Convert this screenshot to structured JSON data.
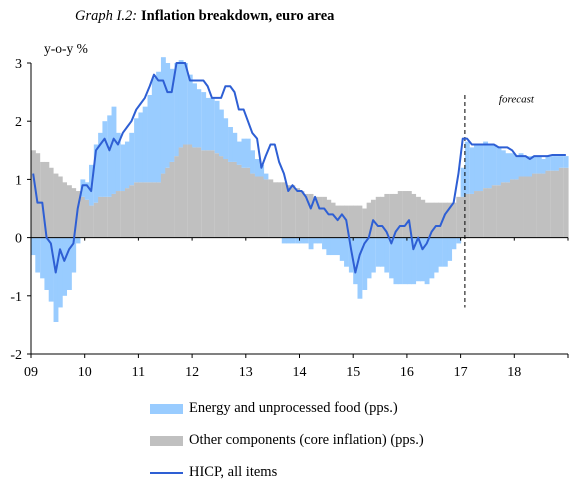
{
  "title": {
    "prefix": "Graph I.2:",
    "main": "Inflation  breakdown,  euro  area"
  },
  "colors": {
    "energy": "#99ccff",
    "core": "#c0c0c0",
    "hicp": "#2e5fd4",
    "axis": "#000000"
  },
  "chart_data": {
    "type": "area",
    "ylabel": "y-o-y %",
    "ylim": [
      -2,
      3
    ],
    "yticks": [
      3,
      2,
      1,
      0,
      -1,
      -2
    ],
    "x_tick_labels": [
      "09",
      "10",
      "11",
      "12",
      "13",
      "14",
      "15",
      "16",
      "17",
      "18"
    ],
    "xlim": [
      2009,
      2019
    ],
    "forecast_label": "forecast",
    "forecast_start": 2017.08,
    "series": [
      {
        "name": "Energy and unprocessed food (pps.)",
        "kind": "bar",
        "x": [
          2009.0,
          2009.08,
          2009.17,
          2009.25,
          2009.33,
          2009.42,
          2009.5,
          2009.58,
          2009.67,
          2009.75,
          2009.83,
          2009.92,
          2010.0,
          2010.08,
          2010.17,
          2010.25,
          2010.33,
          2010.42,
          2010.5,
          2010.58,
          2010.67,
          2010.75,
          2010.83,
          2010.92,
          2011.0,
          2011.08,
          2011.17,
          2011.25,
          2011.33,
          2011.42,
          2011.5,
          2011.58,
          2011.67,
          2011.75,
          2011.83,
          2011.92,
          2012.0,
          2012.08,
          2012.17,
          2012.25,
          2012.33,
          2012.42,
          2012.5,
          2012.58,
          2012.67,
          2012.75,
          2012.83,
          2012.92,
          2013.0,
          2013.08,
          2013.17,
          2013.25,
          2013.33,
          2013.42,
          2013.5,
          2013.58,
          2013.67,
          2013.75,
          2013.83,
          2013.92,
          2014.0,
          2014.08,
          2014.17,
          2014.25,
          2014.33,
          2014.42,
          2014.5,
          2014.58,
          2014.67,
          2014.75,
          2014.83,
          2014.92,
          2015.0,
          2015.08,
          2015.17,
          2015.25,
          2015.33,
          2015.42,
          2015.5,
          2015.58,
          2015.67,
          2015.75,
          2015.83,
          2015.92,
          2016.0,
          2016.08,
          2016.17,
          2016.25,
          2016.33,
          2016.42,
          2016.5,
          2016.58,
          2016.67,
          2016.75,
          2016.83,
          2016.92,
          2017.0,
          2017.08,
          2017.17,
          2017.25,
          2017.33,
          2017.42,
          2017.5,
          2017.58,
          2017.67,
          2017.75,
          2017.83,
          2017.92,
          2018.0,
          2018.08,
          2018.17,
          2018.25,
          2018.33,
          2018.42,
          2018.5,
          2018.58,
          2018.67,
          2018.75,
          2018.83,
          2018.92
        ],
        "values": [
          -0.3,
          -0.6,
          -0.7,
          -0.9,
          -1.1,
          -1.45,
          -1.2,
          -1.0,
          -0.9,
          -0.6,
          -0.1,
          0.3,
          0.3,
          0.7,
          1.0,
          1.1,
          1.3,
          1.4,
          1.5,
          1.0,
          0.8,
          0.8,
          0.9,
          1.1,
          1.2,
          1.3,
          1.5,
          1.8,
          1.9,
          2.0,
          1.8,
          1.6,
          1.6,
          1.5,
          1.4,
          1.2,
          1.1,
          1.0,
          1.0,
          0.9,
          0.9,
          0.9,
          0.8,
          0.7,
          0.6,
          0.5,
          0.4,
          0.5,
          0.5,
          0.4,
          0.3,
          0.2,
          0.1,
          0.0,
          0.0,
          0.0,
          -0.1,
          -0.1,
          -0.1,
          -0.1,
          -0.1,
          -0.1,
          -0.2,
          -0.1,
          -0.1,
          -0.2,
          -0.3,
          -0.3,
          -0.3,
          -0.4,
          -0.5,
          -0.6,
          -0.8,
          -1.05,
          -0.9,
          -0.7,
          -0.6,
          -0.5,
          -0.5,
          -0.6,
          -0.7,
          -0.8,
          -0.8,
          -0.8,
          -0.8,
          -0.8,
          -0.75,
          -0.75,
          -0.8,
          -0.7,
          -0.6,
          -0.5,
          -0.5,
          -0.4,
          -0.2,
          -0.1,
          0.5,
          0.9,
          0.8,
          0.8,
          0.8,
          0.8,
          0.75,
          0.7,
          0.65,
          0.55,
          0.5,
          0.45,
          0.4,
          0.4,
          0.35,
          0.35,
          0.3,
          0.3,
          0.25,
          0.25,
          0.25,
          0.25,
          0.2,
          0.2
        ]
      },
      {
        "name": "Other components (core inflation) (pps.)",
        "kind": "bar",
        "x": [
          2009.0,
          2009.08,
          2009.17,
          2009.25,
          2009.33,
          2009.42,
          2009.5,
          2009.58,
          2009.67,
          2009.75,
          2009.83,
          2009.92,
          2010.0,
          2010.08,
          2010.17,
          2010.25,
          2010.33,
          2010.42,
          2010.5,
          2010.58,
          2010.67,
          2010.75,
          2010.83,
          2010.92,
          2011.0,
          2011.08,
          2011.17,
          2011.25,
          2011.33,
          2011.42,
          2011.5,
          2011.58,
          2011.67,
          2011.75,
          2011.83,
          2011.92,
          2012.0,
          2012.08,
          2012.17,
          2012.25,
          2012.33,
          2012.42,
          2012.5,
          2012.58,
          2012.67,
          2012.75,
          2012.83,
          2012.92,
          2013.0,
          2013.08,
          2013.17,
          2013.25,
          2013.33,
          2013.42,
          2013.5,
          2013.58,
          2013.67,
          2013.75,
          2013.83,
          2013.92,
          2014.0,
          2014.08,
          2014.17,
          2014.25,
          2014.33,
          2014.42,
          2014.5,
          2014.58,
          2014.67,
          2014.75,
          2014.83,
          2014.92,
          2015.0,
          2015.08,
          2015.17,
          2015.25,
          2015.33,
          2015.42,
          2015.5,
          2015.58,
          2015.67,
          2015.75,
          2015.83,
          2015.92,
          2016.0,
          2016.08,
          2016.17,
          2016.25,
          2016.33,
          2016.42,
          2016.5,
          2016.58,
          2016.67,
          2016.75,
          2016.83,
          2016.92,
          2017.0,
          2017.08,
          2017.17,
          2017.25,
          2017.33,
          2017.42,
          2017.5,
          2017.58,
          2017.67,
          2017.75,
          2017.83,
          2017.92,
          2018.0,
          2018.08,
          2018.17,
          2018.25,
          2018.33,
          2018.42,
          2018.5,
          2018.58,
          2018.67,
          2018.75,
          2018.83,
          2018.92
        ],
        "values": [
          1.5,
          1.45,
          1.3,
          1.3,
          1.2,
          1.1,
          1.05,
          0.95,
          0.9,
          0.85,
          0.8,
          0.7,
          0.65,
          0.55,
          0.6,
          0.7,
          0.7,
          0.7,
          0.75,
          0.8,
          0.8,
          0.85,
          0.9,
          0.95,
          0.95,
          0.95,
          0.95,
          0.95,
          0.95,
          1.1,
          1.2,
          1.3,
          1.4,
          1.55,
          1.6,
          1.6,
          1.55,
          1.55,
          1.5,
          1.5,
          1.5,
          1.45,
          1.4,
          1.35,
          1.3,
          1.3,
          1.25,
          1.2,
          1.2,
          1.1,
          1.05,
          1.05,
          1.0,
          1.0,
          0.95,
          0.95,
          0.95,
          0.9,
          0.9,
          0.85,
          0.8,
          0.75,
          0.75,
          0.7,
          0.7,
          0.7,
          0.65,
          0.6,
          0.55,
          0.55,
          0.55,
          0.55,
          0.55,
          0.55,
          0.5,
          0.6,
          0.65,
          0.7,
          0.7,
          0.75,
          0.75,
          0.75,
          0.8,
          0.8,
          0.8,
          0.75,
          0.7,
          0.65,
          0.6,
          0.6,
          0.6,
          0.6,
          0.6,
          0.6,
          0.6,
          0.7,
          0.7,
          0.75,
          0.75,
          0.8,
          0.8,
          0.85,
          0.85,
          0.9,
          0.9,
          0.95,
          0.95,
          1.0,
          1.0,
          1.05,
          1.05,
          1.05,
          1.1,
          1.1,
          1.1,
          1.15,
          1.15,
          1.15,
          1.2,
          1.2
        ]
      },
      {
        "name": "HICP, all items",
        "kind": "line",
        "x": [
          2009.0,
          2009.08,
          2009.17,
          2009.25,
          2009.33,
          2009.42,
          2009.5,
          2009.58,
          2009.67,
          2009.75,
          2009.83,
          2009.92,
          2010.0,
          2010.08,
          2010.17,
          2010.25,
          2010.33,
          2010.42,
          2010.5,
          2010.58,
          2010.67,
          2010.75,
          2010.83,
          2010.92,
          2011.0,
          2011.08,
          2011.17,
          2011.25,
          2011.33,
          2011.42,
          2011.5,
          2011.58,
          2011.67,
          2011.75,
          2011.83,
          2011.92,
          2012.0,
          2012.08,
          2012.17,
          2012.25,
          2012.33,
          2012.42,
          2012.5,
          2012.58,
          2012.67,
          2012.75,
          2012.83,
          2012.92,
          2013.0,
          2013.08,
          2013.17,
          2013.25,
          2013.33,
          2013.42,
          2013.5,
          2013.58,
          2013.67,
          2013.75,
          2013.83,
          2013.92,
          2014.0,
          2014.08,
          2014.17,
          2014.25,
          2014.33,
          2014.42,
          2014.5,
          2014.58,
          2014.67,
          2014.75,
          2014.83,
          2014.92,
          2015.0,
          2015.08,
          2015.17,
          2015.25,
          2015.33,
          2015.42,
          2015.5,
          2015.58,
          2015.67,
          2015.75,
          2015.83,
          2015.92,
          2016.0,
          2016.08,
          2016.17,
          2016.25,
          2016.33,
          2016.42,
          2016.5,
          2016.58,
          2016.67,
          2016.75,
          2016.83,
          2016.92,
          2017.0,
          2017.08,
          2017.17,
          2017.25,
          2017.33,
          2017.42,
          2017.5,
          2017.58,
          2017.67,
          2017.75,
          2017.83,
          2017.92,
          2018.0,
          2018.08,
          2018.17,
          2018.25,
          2018.33,
          2018.42,
          2018.5,
          2018.58,
          2018.67,
          2018.75,
          2018.83,
          2018.92
        ],
        "values": [
          1.1,
          0.6,
          0.6,
          0.0,
          -0.1,
          -0.6,
          -0.2,
          -0.4,
          -0.2,
          -0.1,
          0.5,
          0.9,
          0.9,
          0.8,
          1.5,
          1.6,
          1.7,
          1.5,
          1.7,
          1.6,
          1.8,
          1.9,
          2.0,
          2.2,
          2.3,
          2.4,
          2.6,
          2.8,
          2.7,
          2.7,
          2.5,
          2.5,
          3.0,
          3.0,
          3.0,
          2.7,
          2.7,
          2.7,
          2.7,
          2.6,
          2.4,
          2.4,
          2.4,
          2.6,
          2.6,
          2.5,
          2.2,
          2.2,
          2.0,
          1.8,
          1.7,
          1.2,
          1.4,
          1.6,
          1.6,
          1.3,
          1.1,
          0.8,
          0.9,
          0.8,
          0.8,
          0.7,
          0.5,
          0.7,
          0.5,
          0.5,
          0.4,
          0.4,
          0.3,
          0.4,
          0.3,
          -0.2,
          -0.6,
          -0.3,
          -0.1,
          0.0,
          0.3,
          0.2,
          0.2,
          0.1,
          -0.1,
          0.1,
          0.2,
          0.2,
          0.3,
          -0.2,
          0.0,
          -0.2,
          -0.1,
          0.1,
          0.2,
          0.2,
          0.4,
          0.5,
          0.6,
          1.1,
          1.7,
          1.7,
          1.6,
          1.6,
          1.6,
          1.6,
          1.6,
          1.6,
          1.55,
          1.55,
          1.55,
          1.5,
          1.4,
          1.4,
          1.4,
          1.35,
          1.4,
          1.4,
          1.4,
          1.4,
          1.42,
          1.42,
          1.42,
          1.42
        ]
      }
    ],
    "legend_placement": "bottom-left",
    "grid": false
  }
}
